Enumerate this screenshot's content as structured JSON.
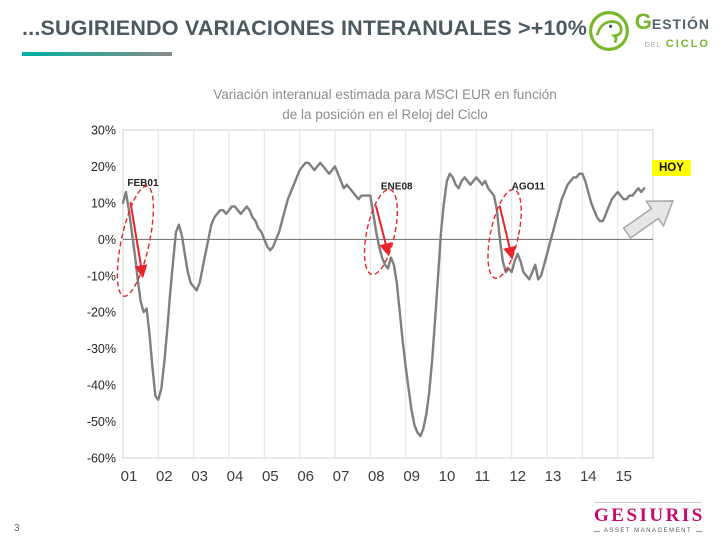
{
  "slide": {
    "title": "...SUGIRIENDO VARIACIONES INTERANUALES >+10%",
    "page_number": "3"
  },
  "brand_top": {
    "name_initial": "G",
    "name_rest": "ESTIÓN",
    "sub_del": "DEL",
    "sub_ciclo": "CICLO",
    "green": "#76b82a"
  },
  "brand_bottom": {
    "name": "GESIURIS",
    "subtitle": "ASSET MANAGEMENT",
    "magenta": "#c40a6e"
  },
  "hoy_label": "HOY",
  "chart_data": {
    "type": "line",
    "title_line1": "Variación interanual estimada para MSCI EUR en función",
    "title_line2": "de la posición en el Reloj del Ciclo",
    "xlabel": "",
    "ylabel": "",
    "x_categories": [
      "01",
      "02",
      "03",
      "04",
      "05",
      "06",
      "07",
      "08",
      "09",
      "10",
      "11",
      "12",
      "13",
      "14",
      "15"
    ],
    "ylim": [
      -60,
      30
    ],
    "yticks": [
      30,
      20,
      10,
      0,
      -10,
      -20,
      -30,
      -40,
      -50,
      -60
    ],
    "ytick_suffix": "%",
    "grid": "vertical-yearly",
    "zero_line": true,
    "legend": "none",
    "line_color": "#7f7f7f",
    "annotation_color": "#e8232a",
    "series": [
      {
        "name": "Variación interanual estimada MSCI EUR",
        "color": "#7f7f7f",
        "start": "2001-01",
        "freq": "monthly",
        "values": [
          10,
          13,
          8,
          2,
          -4,
          -11,
          -17,
          -20,
          -19,
          -26,
          -35,
          -43,
          -44,
          -41,
          -34,
          -25,
          -15,
          -6,
          2,
          4,
          1,
          -4,
          -9,
          -12,
          -13,
          -14,
          -12,
          -8,
          -4,
          0,
          4,
          6,
          7,
          8,
          8,
          7,
          8,
          9,
          9,
          8,
          7,
          8,
          9,
          8,
          6,
          5,
          3,
          2,
          0,
          -2,
          -3,
          -2,
          0,
          2,
          5,
          8,
          11,
          13,
          15,
          17,
          19,
          20,
          21,
          21,
          20,
          19,
          20,
          21,
          20,
          19,
          18,
          19,
          20,
          18,
          16,
          14,
          15,
          14,
          13,
          12,
          11,
          12,
          12,
          12,
          12,
          7,
          2,
          -2,
          -5,
          -7,
          -8,
          -5,
          -7,
          -12,
          -20,
          -28,
          -35,
          -41,
          -47,
          -51,
          -53,
          -54,
          -52,
          -48,
          -42,
          -33,
          -22,
          -10,
          2,
          10,
          16,
          18,
          17,
          15,
          14,
          16,
          17,
          16,
          15,
          16,
          17,
          16,
          15,
          16,
          14,
          13,
          12,
          8,
          0,
          -6,
          -9,
          -8,
          -9,
          -6,
          -4,
          -6,
          -9,
          -10,
          -11,
          -9,
          -7,
          -11,
          -10,
          -7,
          -4,
          -1,
          2,
          5,
          8,
          11,
          13,
          15,
          16,
          17,
          17,
          18,
          18,
          16,
          13,
          10,
          8,
          6,
          5,
          5,
          7,
          9,
          11,
          12,
          13,
          12,
          11,
          11,
          12,
          12,
          13,
          14,
          13,
          14
        ]
      }
    ],
    "annotations": [
      {
        "label": "FEB01",
        "x_year": 0.35,
        "y_top_pct": 13,
        "y_bottom_pct": -14,
        "label_dx": -8
      },
      {
        "label": "ENE08",
        "x_year": 7.3,
        "y_top_pct": 12,
        "y_bottom_pct": -8,
        "label_dx": 0
      },
      {
        "label": "AGO11",
        "x_year": 10.8,
        "y_top_pct": 12,
        "y_bottom_pct": -9,
        "label_dx": 7
      }
    ]
  }
}
